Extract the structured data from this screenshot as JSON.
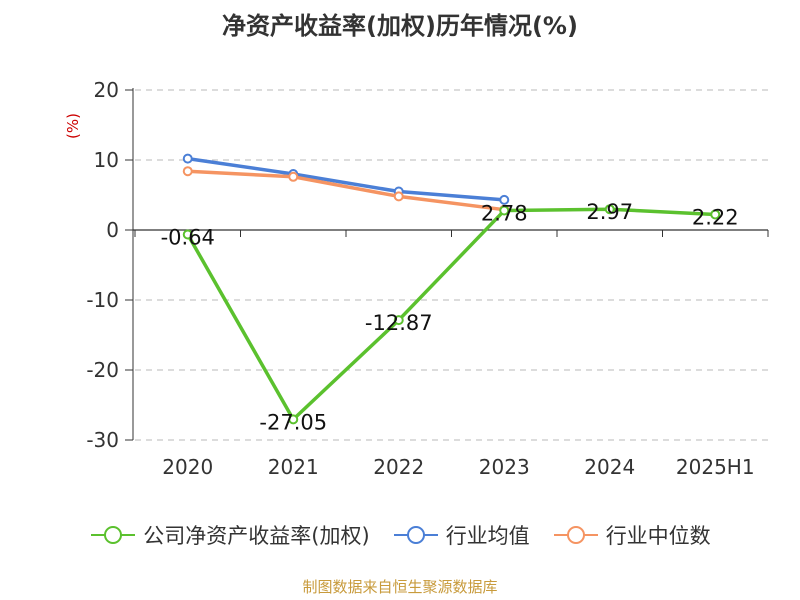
{
  "chart_data": {
    "type": "line",
    "title": "净资产收益率(加权)历年情况(%)",
    "ylabel": "(%)",
    "categories": [
      "2020",
      "2021",
      "2022",
      "2023",
      "2024",
      "2025H1"
    ],
    "ylim": [
      -30,
      20
    ],
    "yticks": [
      20,
      10,
      0,
      -10,
      -20,
      -30
    ],
    "grid": true,
    "legend_position": "bottom",
    "series": [
      {
        "name": "公司净资产收益率(加权)",
        "color": "#5bc12e",
        "values": [
          -0.64,
          -27.05,
          -12.87,
          2.78,
          2.97,
          2.22
        ],
        "labels": [
          "-0.64",
          "-27.05",
          "-12.87",
          "2.78",
          "2.97",
          "2.22"
        ]
      },
      {
        "name": "行业均值",
        "color": "#4b7fd6",
        "values": [
          10.2,
          8.0,
          5.5,
          4.3,
          null,
          null
        ]
      },
      {
        "name": "行业中位数",
        "color": "#f59462",
        "values": [
          8.4,
          7.6,
          4.8,
          2.9,
          null,
          null
        ]
      }
    ]
  },
  "footer": {
    "source": "制图数据来自恒生聚源数据库"
  }
}
